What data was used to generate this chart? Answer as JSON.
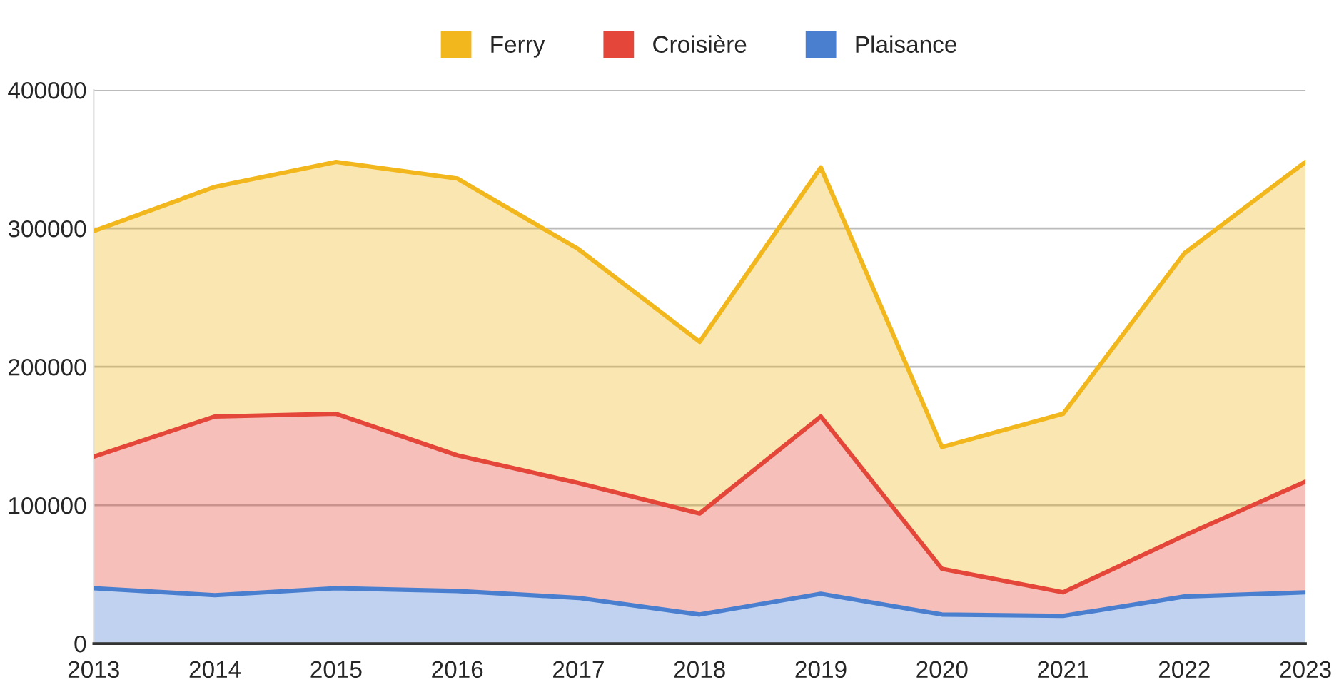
{
  "chart_data": {
    "type": "area",
    "stacked": true,
    "x": [
      2013,
      2014,
      2015,
      2016,
      2017,
      2018,
      2019,
      2020,
      2021,
      2022,
      2023
    ],
    "series": [
      {
        "name": "Plaisance",
        "color": "#4a7fd0",
        "values": [
          40000,
          35000,
          40000,
          38000,
          33000,
          21000,
          36000,
          21000,
          20000,
          34000,
          37000
        ]
      },
      {
        "name": "Croisière",
        "color": "#e4473a",
        "values": [
          95000,
          129000,
          126000,
          98000,
          83000,
          73000,
          128000,
          33000,
          17000,
          44000,
          80000
        ]
      },
      {
        "name": "Ferry",
        "color": "#f2b71c",
        "values": [
          163000,
          166000,
          182000,
          200000,
          169000,
          124000,
          180000,
          88000,
          129000,
          204000,
          231000
        ]
      }
    ],
    "xlim": [
      2013,
      2023
    ],
    "xticks": [
      2013,
      2014,
      2015,
      2016,
      2017,
      2018,
      2019,
      2020,
      2021,
      2022,
      2023
    ],
    "ylim": [
      0,
      400000
    ],
    "yticks": [
      0,
      100000,
      200000,
      300000,
      400000
    ],
    "grid": "y",
    "legend": "top"
  }
}
